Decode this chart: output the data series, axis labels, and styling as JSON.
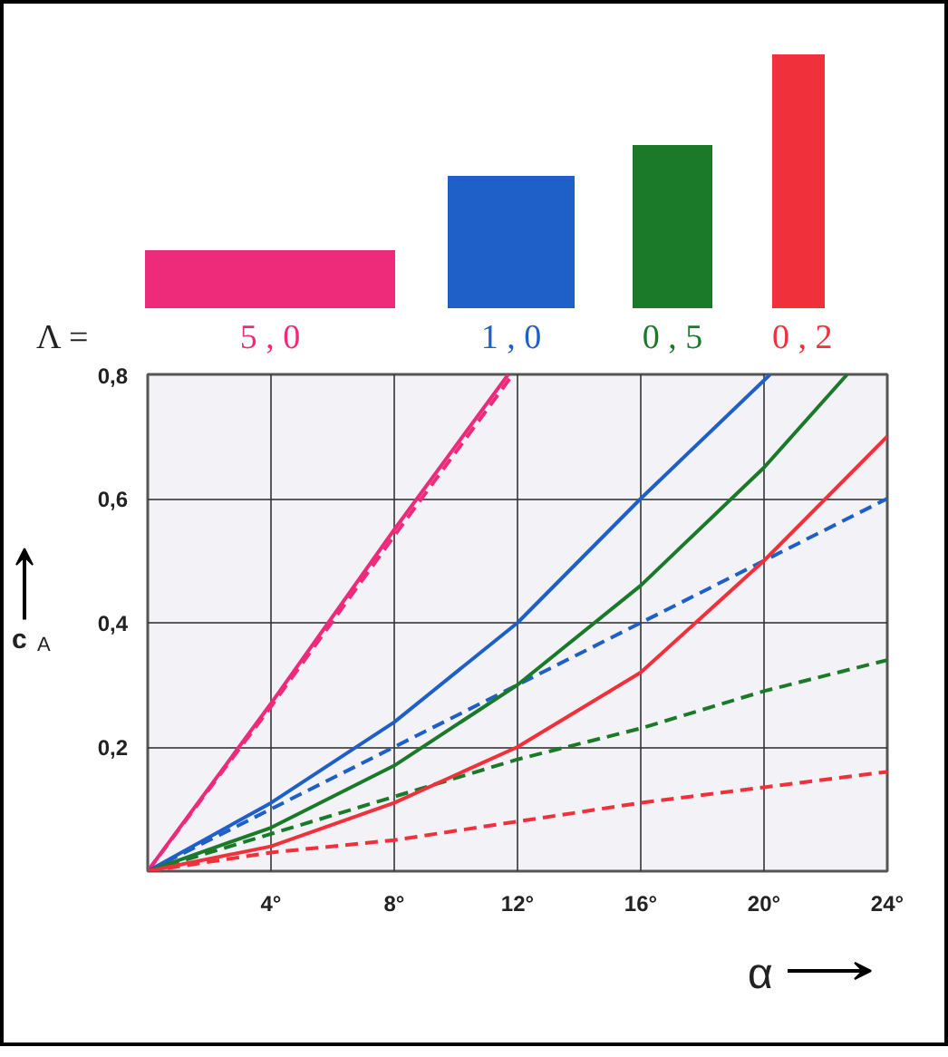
{
  "chart_data": {
    "type": "line",
    "xlabel": "α",
    "ylabel": "c$_{A}$",
    "legend_title": "Λ =",
    "legend": "top",
    "grid": true,
    "xlim": [
      0,
      24
    ],
    "ylim": [
      0,
      0.8
    ],
    "xticks": [
      {
        "value": 4,
        "label": "4°"
      },
      {
        "value": 8,
        "label": "8°"
      },
      {
        "value": 12,
        "label": "12°"
      },
      {
        "value": 16,
        "label": "16°"
      },
      {
        "value": 20,
        "label": "20°"
      },
      {
        "value": 24,
        "label": "24°"
      }
    ],
    "yticks": [
      {
        "value": 0.2,
        "label": "0,2"
      },
      {
        "value": 0.4,
        "label": "0,4"
      },
      {
        "value": 0.6,
        "label": "0,6"
      },
      {
        "value": 0.8,
        "label": "0,8"
      }
    ],
    "series": [
      {
        "name": "5 , 0",
        "color": "#ee2a7b",
        "line_style": "solid",
        "x": [
          0,
          4,
          8,
          11.7
        ],
        "values": [
          0,
          0.27,
          0.55,
          0.8
        ]
      },
      {
        "color": "#ee2a7b",
        "line_style": "dashed",
        "x": [
          0,
          4,
          8,
          11.85
        ],
        "values": [
          0,
          0.265,
          0.54,
          0.8
        ]
      },
      {
        "name": "1 , 0",
        "color": "#1f5fc8",
        "line_style": "solid",
        "x": [
          0,
          4,
          8,
          12,
          16,
          20.2
        ],
        "values": [
          0,
          0.11,
          0.24,
          0.4,
          0.6,
          0.8
        ]
      },
      {
        "color": "#1f5fc8",
        "line_style": "dashed",
        "x": [
          0,
          4,
          8,
          12,
          16,
          20,
          24
        ],
        "values": [
          0,
          0.1,
          0.2,
          0.3,
          0.4,
          0.5,
          0.6
        ]
      },
      {
        "name": "0 , 5",
        "color": "#1a7a2a",
        "line_style": "solid",
        "x": [
          0,
          4,
          8,
          12,
          16,
          20,
          22.7
        ],
        "values": [
          0,
          0.07,
          0.17,
          0.3,
          0.46,
          0.65,
          0.8
        ]
      },
      {
        "color": "#1a7a2a",
        "line_style": "dashed",
        "x": [
          0,
          4,
          8,
          12,
          16,
          20,
          24
        ],
        "values": [
          0,
          0.06,
          0.12,
          0.18,
          0.23,
          0.29,
          0.34
        ]
      },
      {
        "name": "0 , 2",
        "color": "#f0303a",
        "line_style": "solid",
        "x": [
          0,
          4,
          8,
          12,
          16,
          20,
          24
        ],
        "values": [
          0,
          0.04,
          0.11,
          0.2,
          0.32,
          0.5,
          0.7
        ]
      },
      {
        "color": "#f0303a",
        "line_style": "dashed",
        "x": [
          0,
          4,
          8,
          12,
          16,
          20,
          24
        ],
        "values": [
          0,
          0.03,
          0.05,
          0.08,
          0.11,
          0.135,
          0.16
        ]
      }
    ]
  }
}
